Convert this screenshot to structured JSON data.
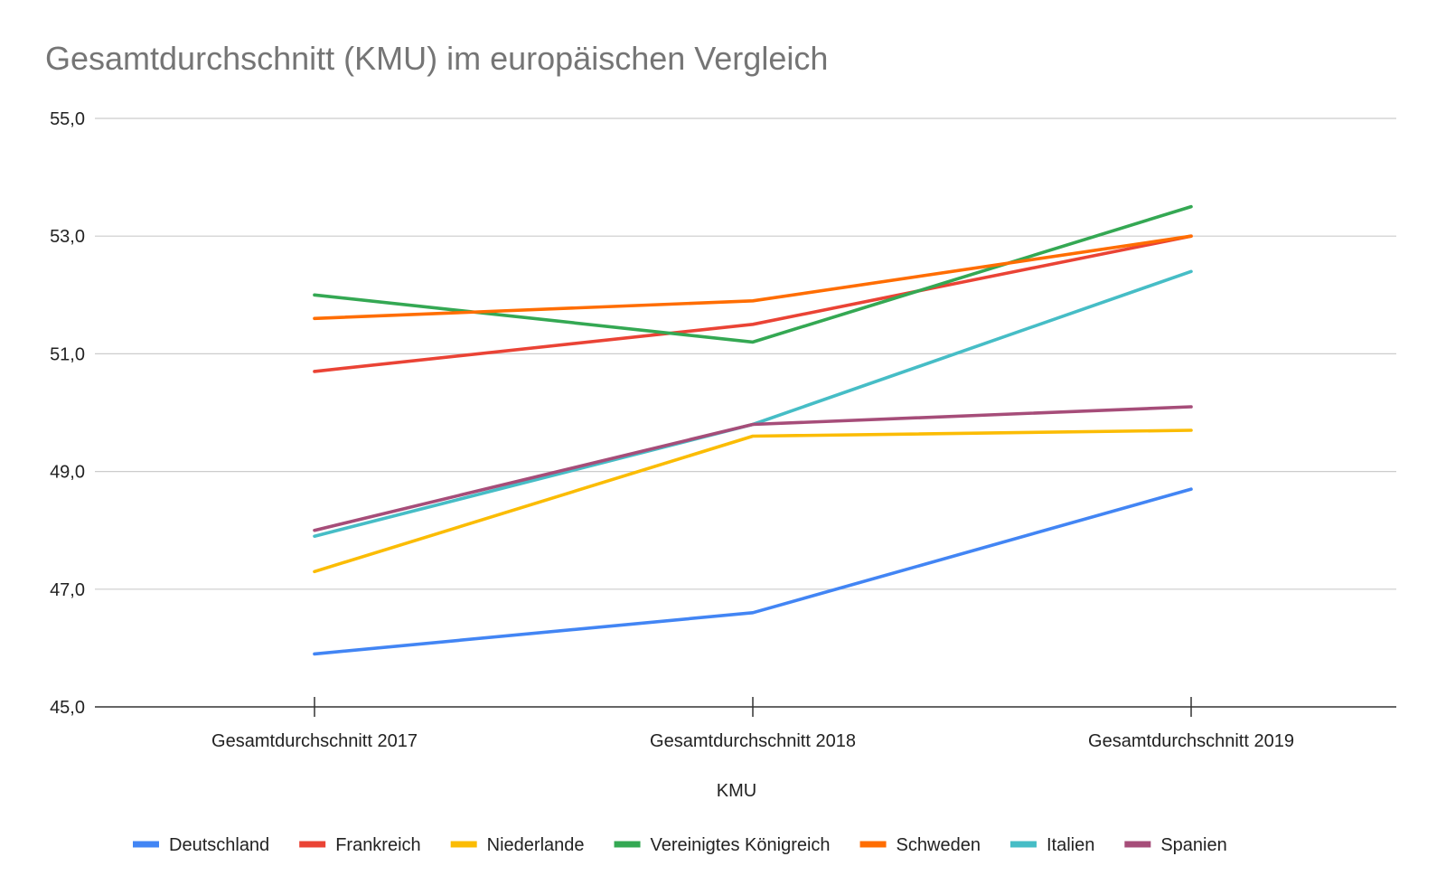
{
  "chart_data": {
    "type": "line",
    "title": "Gesamtdurchschnitt (KMU) im europäischen Vergleich",
    "xlabel": "KMU",
    "ylabel": "",
    "categories": [
      "Gesamtdurchschnitt 2017",
      "Gesamtdurchschnitt 2018",
      "Gesamtdurchschnitt 2019"
    ],
    "ylim": [
      45,
      55
    ],
    "yticks": [
      "45,0",
      "47,0",
      "49,0",
      "51,0",
      "53,0",
      "55,0"
    ],
    "grid": true,
    "legend_position": "bottom",
    "series": [
      {
        "name": "Deutschland",
        "color": "#4285f4",
        "values": [
          45.9,
          46.6,
          48.7
        ]
      },
      {
        "name": "Frankreich",
        "color": "#ea4335",
        "values": [
          50.7,
          51.5,
          53.0
        ]
      },
      {
        "name": "Niederlande",
        "color": "#fbbc04",
        "values": [
          47.3,
          49.6,
          49.7
        ]
      },
      {
        "name": "Vereinigtes Königreich",
        "color": "#34a853",
        "values": [
          52.0,
          51.2,
          53.5
        ]
      },
      {
        "name": "Schweden",
        "color": "#ff6d01",
        "values": [
          51.6,
          51.9,
          53.0
        ]
      },
      {
        "name": "Italien",
        "color": "#46bdc6",
        "values": [
          47.9,
          49.8,
          52.4
        ]
      },
      {
        "name": "Spanien",
        "color": "#a64d79",
        "values": [
          48.0,
          49.8,
          50.1
        ]
      }
    ]
  }
}
